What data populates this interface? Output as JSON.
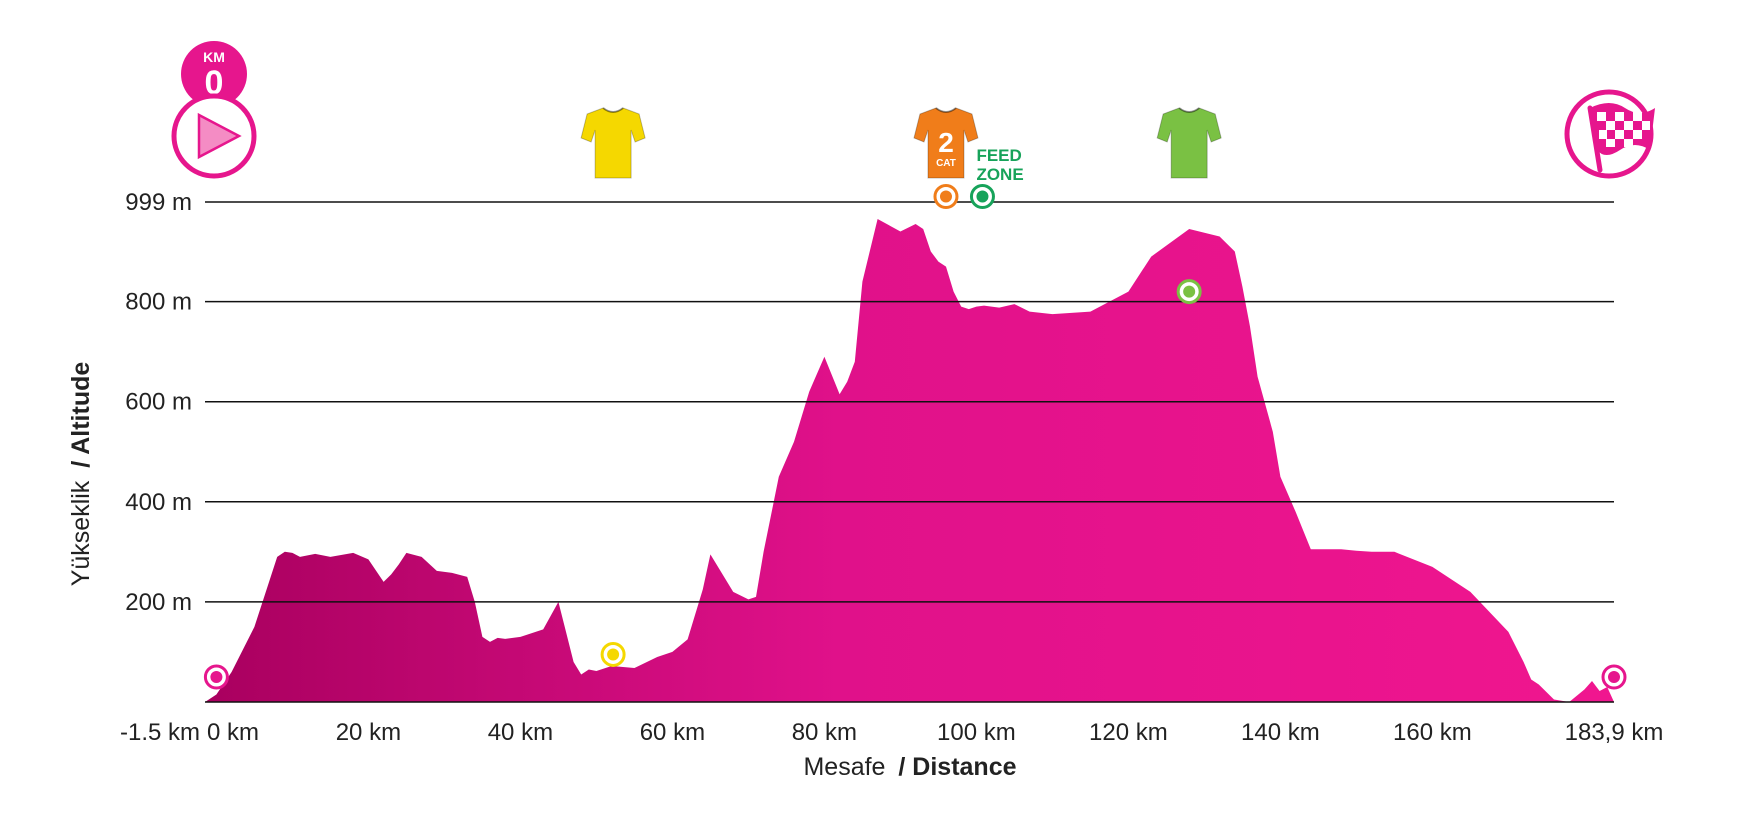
{
  "chart_data": {
    "type": "area",
    "y_axis_label": {
      "light": "Yükseklik",
      "bold": "/ Altitude"
    },
    "x_axis_label": {
      "light": "Mesafe",
      "bold": "/ Distance"
    },
    "y_ticks": [
      {
        "value": 200,
        "label": "200 m"
      },
      {
        "value": 400,
        "label": "400 m"
      },
      {
        "value": 600,
        "label": "600 m"
      },
      {
        "value": 800,
        "label": "800 m"
      },
      {
        "value": 999,
        "label": "999 m"
      }
    ],
    "x_ticks": [
      {
        "value": -1.5,
        "label": "-1.5 km"
      },
      {
        "value": 0,
        "label": "0 km"
      },
      {
        "value": 20,
        "label": "20 km"
      },
      {
        "value": 40,
        "label": "40 km"
      },
      {
        "value": 60,
        "label": "60 km"
      },
      {
        "value": 80,
        "label": "80 km"
      },
      {
        "value": 100,
        "label": "100 km"
      },
      {
        "value": 120,
        "label": "120 km"
      },
      {
        "value": 140,
        "label": "140 km"
      },
      {
        "value": 160,
        "label": "160 km"
      },
      {
        "value": 183.9,
        "label": "183,9 km"
      }
    ],
    "xlim": [
      -1.5,
      183.9
    ],
    "ylim": [
      0,
      999
    ],
    "grid": "horizontal",
    "profile": {
      "x": [
        -1.5,
        0,
        2,
        5,
        8,
        9,
        10,
        11,
        13,
        15,
        18,
        20,
        22,
        23,
        24,
        25,
        27,
        29,
        31,
        33,
        34,
        35,
        36,
        37,
        38,
        40,
        43,
        45,
        46,
        47,
        48,
        49,
        50,
        52,
        55,
        58,
        60,
        62,
        64,
        65,
        66,
        68,
        70,
        71,
        72,
        74,
        76,
        78,
        80,
        82,
        83,
        84,
        85,
        87,
        90,
        92,
        93,
        94,
        95,
        96,
        97,
        98,
        99,
        100,
        101,
        103,
        105,
        107,
        110,
        115,
        120,
        123,
        128,
        132,
        134,
        135,
        136,
        137,
        139,
        140,
        142,
        144,
        146,
        148,
        150,
        152,
        155,
        160,
        165,
        170,
        172,
        173,
        174,
        176,
        178,
        180,
        181,
        182,
        183,
        183.9
      ],
      "y": [
        0,
        15,
        60,
        150,
        290,
        300,
        298,
        290,
        296,
        290,
        298,
        285,
        240,
        255,
        275,
        298,
        290,
        262,
        258,
        250,
        200,
        130,
        120,
        128,
        126,
        130,
        145,
        200,
        140,
        80,
        55,
        65,
        62,
        72,
        68,
        90,
        100,
        125,
        225,
        295,
        270,
        220,
        205,
        210,
        300,
        450,
        520,
        620,
        690,
        615,
        640,
        680,
        840,
        965,
        940,
        955,
        945,
        900,
        880,
        870,
        820,
        790,
        785,
        790,
        792,
        788,
        795,
        780,
        775,
        780,
        820,
        890,
        945,
        930,
        900,
        830,
        750,
        650,
        540,
        450,
        380,
        305,
        305,
        305,
        302,
        300,
        300,
        270,
        220,
        140,
        80,
        45,
        35,
        5,
        0,
        25,
        42,
        22,
        30,
        0
      ]
    },
    "markers": [
      {
        "kind": "start",
        "x": 0,
        "y": 50,
        "color": "#e6168d"
      },
      {
        "kind": "yellow",
        "x": 52.2,
        "y": 95,
        "color": "#f5d800"
      },
      {
        "kind": "kom",
        "x": 96.0,
        "y": 1010,
        "color": "#f07d1a"
      },
      {
        "kind": "feed",
        "x": 100.8,
        "y": 1010,
        "color": "#17a35a"
      },
      {
        "kind": "green",
        "x": 128.0,
        "y": 820,
        "color": "#7ac143"
      },
      {
        "kind": "finish",
        "x": 183.9,
        "y": 50,
        "color": "#e6168d"
      }
    ],
    "jerseys": [
      {
        "kind": "yellow",
        "x": 52.2,
        "color": "#f5d800"
      },
      {
        "kind": "kom",
        "x": 96.0,
        "color": "#f07d1a"
      },
      {
        "kind": "green",
        "x": 128.0,
        "color": "#7ac143"
      }
    ],
    "colors": {
      "profile_start": "#a9005f",
      "profile_end": "#f0168f",
      "brand": "#e6168d",
      "gridline": "#111111"
    }
  },
  "icons": {
    "start": "play-icon",
    "finish": "checkered-flag-icon",
    "km0": "km0-badge",
    "jersey": "jersey-icon"
  },
  "km0_badge": {
    "label": "KM",
    "number": "0"
  },
  "kom_jersey": {
    "number": "2",
    "label": "CAT"
  },
  "feed_zone": {
    "line1": "FEED",
    "line2": "ZONE"
  }
}
